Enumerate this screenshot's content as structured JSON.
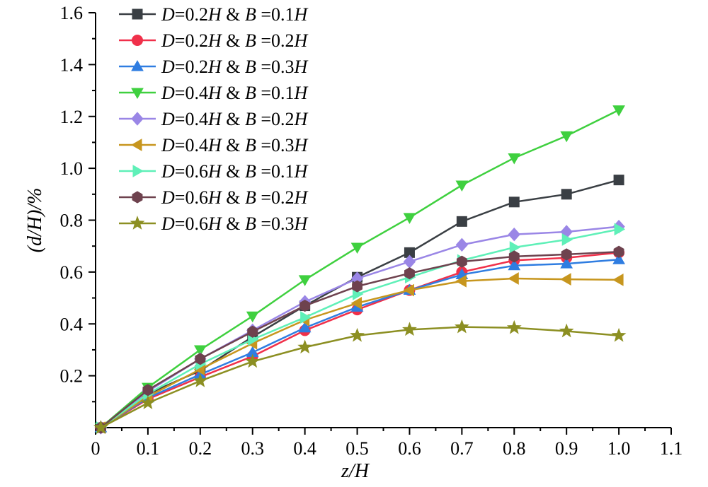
{
  "chart_data": {
    "type": "line",
    "xlabel": "z/H",
    "ylabel": "(d/H)/%",
    "xlim": [
      0,
      1.1
    ],
    "ylim": [
      0,
      1.6
    ],
    "xticks": [
      "0",
      "0.1",
      "0.2",
      "0.3",
      "0.4",
      "0.5",
      "0.6",
      "0.7",
      "0.8",
      "0.9",
      "1.0",
      "1.1"
    ],
    "yticks": [
      "0.2",
      "0.4",
      "0.6",
      "0.8",
      "1.0",
      "1.2",
      "1.4",
      "1.6"
    ],
    "legend_position": "top-left",
    "grid": false,
    "x": [
      0.01,
      0.1,
      0.2,
      0.3,
      0.4,
      0.5,
      0.6,
      0.7,
      0.8,
      0.9,
      1.0
    ],
    "series": [
      {
        "name": "D=0.2H & B=0.1H",
        "label": {
          "a": "D",
          "b": "=0.2",
          "c": "H",
          "d": " & ",
          "e": "B",
          "f": " =0.1",
          "g": "H"
        },
        "color": "#3a3f44",
        "marker": "square",
        "values": [
          0.0,
          0.13,
          0.22,
          0.35,
          0.47,
          0.58,
          0.675,
          0.795,
          0.87,
          0.9,
          0.955
        ]
      },
      {
        "name": "D=0.2H & B=0.2H",
        "label": {
          "a": "D",
          "b": "=0.2",
          "c": "H",
          "d": " & ",
          "e": "B",
          "f": " =0.2",
          "g": "H"
        },
        "color": "#f0304a",
        "marker": "circle",
        "values": [
          0.0,
          0.11,
          0.195,
          0.275,
          0.375,
          0.455,
          0.53,
          0.6,
          0.645,
          0.655,
          0.675
        ]
      },
      {
        "name": "D=0.2H & B=0.3H",
        "label": {
          "a": "D",
          "b": "=0.2",
          "c": "H",
          "d": " & ",
          "e": "B",
          "f": " =0.3",
          "g": "H"
        },
        "color": "#2f7de1",
        "marker": "triangle-up",
        "values": [
          0.0,
          0.115,
          0.205,
          0.29,
          0.385,
          0.465,
          0.53,
          0.59,
          0.625,
          0.632,
          0.648
        ]
      },
      {
        "name": "D=0.4H & B=0.1H",
        "label": {
          "a": "D",
          "b": "=0.4",
          "c": "H",
          "d": " & ",
          "e": "B",
          "f": " =0.1",
          "g": "H"
        },
        "color": "#3fd03f",
        "marker": "triangle-down",
        "values": [
          0.0,
          0.155,
          0.3,
          0.43,
          0.57,
          0.695,
          0.81,
          0.935,
          1.04,
          1.125,
          1.225
        ]
      },
      {
        "name": "D=0.4H & B=0.2H",
        "label": {
          "a": "D",
          "b": "=0.4",
          "c": "H",
          "d": " & ",
          "e": "B",
          "f": " =0.2",
          "g": "H"
        },
        "color": "#9a86e6",
        "marker": "diamond",
        "values": [
          0.0,
          0.14,
          0.265,
          0.375,
          0.485,
          0.575,
          0.64,
          0.705,
          0.745,
          0.755,
          0.775
        ]
      },
      {
        "name": "D=0.4H & B=0.3H",
        "label": {
          "a": "D",
          "b": "=0.4",
          "c": "H",
          "d": " & ",
          "e": "B",
          "f": " =0.3",
          "g": "H"
        },
        "color": "#c7961e",
        "marker": "triangle-left",
        "values": [
          0.0,
          0.12,
          0.225,
          0.325,
          0.415,
          0.48,
          0.53,
          0.565,
          0.575,
          0.572,
          0.57
        ]
      },
      {
        "name": "D=0.6H & B=0.1H",
        "label": {
          "a": "D",
          "b": "=0.6",
          "c": "H",
          "d": " & ",
          "e": "B",
          "f": " =0.1",
          "g": "H"
        },
        "color": "#5ff0b8",
        "marker": "triangle-right",
        "values": [
          0.0,
          0.13,
          0.245,
          0.34,
          0.425,
          0.515,
          0.58,
          0.645,
          0.695,
          0.725,
          0.765
        ]
      },
      {
        "name": "D=0.6H & B=0.2H",
        "label": {
          "a": "D",
          "b": "=0.6",
          "c": "H",
          "d": " & ",
          "e": "B",
          "f": " =0.2",
          "g": "H"
        },
        "color": "#6e424e",
        "marker": "hexagon",
        "values": [
          0.0,
          0.145,
          0.265,
          0.37,
          0.47,
          0.545,
          0.595,
          0.64,
          0.66,
          0.668,
          0.678
        ]
      },
      {
        "name": "D=0.6H & B=0.3H",
        "label": {
          "a": "D",
          "b": "=0.6",
          "c": "H",
          "d": " & ",
          "e": "B",
          "f": " =0.3",
          "g": "H"
        },
        "color": "#8c8f22",
        "marker": "star",
        "values": [
          0.0,
          0.095,
          0.18,
          0.255,
          0.31,
          0.355,
          0.378,
          0.388,
          0.385,
          0.372,
          0.355
        ]
      }
    ]
  }
}
